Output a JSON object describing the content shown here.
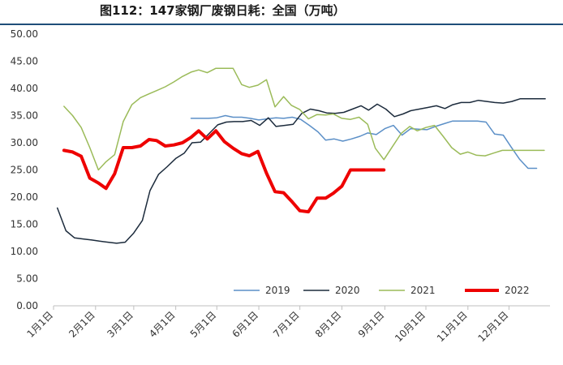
{
  "chart_data": {
    "type": "line",
    "title": "图112：147家钢厂废钢日耗：全国（万吨）",
    "ylim": [
      0,
      50
    ],
    "yticks": [
      "0.00",
      "5.00",
      "10.00",
      "15.00",
      "20.00",
      "25.00",
      "30.00",
      "35.00",
      "40.00",
      "45.00",
      "50.00"
    ],
    "xlim": [
      1,
      53
    ],
    "xticks": [
      {
        "week": 1,
        "label": "1月1日"
      },
      {
        "week": 5.4,
        "label": "2月1日"
      },
      {
        "week": 9.4,
        "label": "3月1日"
      },
      {
        "week": 13.8,
        "label": "4月1日"
      },
      {
        "week": 18.1,
        "label": "5月1日"
      },
      {
        "week": 22.5,
        "label": "6月1日"
      },
      {
        "week": 26.8,
        "label": "7月1日"
      },
      {
        "week": 31.2,
        "label": "8月1日"
      },
      {
        "week": 35.7,
        "label": "9月1日"
      },
      {
        "week": 40,
        "label": "10月1日"
      },
      {
        "week": 44.4,
        "label": "11月1日"
      },
      {
        "week": 48.7,
        "label": "12月1日"
      }
    ],
    "grid": false,
    "legend_position": "bottom-right",
    "series": [
      {
        "name": "2019",
        "color": "#5b8fc7",
        "width": 1.5,
        "x": [
          15.4,
          16.3,
          17.2,
          18.1,
          19,
          19.8,
          20.7,
          21.6,
          22.5,
          23.4,
          24.3,
          25.1,
          26,
          26.9,
          27.8,
          28.7,
          29.5,
          30.4,
          31.3,
          32.2,
          33.1,
          33.9,
          34.8,
          35.7,
          36.6,
          37.5,
          38.4,
          39.2,
          40.1,
          41,
          41.9,
          42.8,
          43.7,
          44.5,
          45.4,
          46.3,
          47.2,
          48.1,
          48.9,
          49.8,
          50.7,
          51.6
        ],
        "values": [
          34.5,
          34.5,
          34.5,
          34.6,
          35,
          34.7,
          34.7,
          34.5,
          34.2,
          34.4,
          34.6,
          34.5,
          34.7,
          34.3,
          33.2,
          32,
          30.5,
          30.7,
          30.3,
          30.7,
          31.2,
          31.8,
          31.5,
          32.6,
          33.2,
          31.4,
          32.6,
          32.5,
          32.4,
          33,
          33.5,
          34,
          34,
          34,
          34,
          33.8,
          31.6,
          31.4,
          29.3,
          27,
          25.3,
          25.3
        ]
      },
      {
        "name": "2020",
        "color": "#1c2b3c",
        "width": 1.5,
        "x": [
          1.4,
          2.3,
          3.2,
          4.1,
          5,
          5.8,
          6.7,
          7.6,
          8.5,
          9.4,
          10.3,
          11.1,
          12,
          12.9,
          13.8,
          14.7,
          15.5,
          16.4,
          17.3,
          18.2,
          19.1,
          19.9,
          20.8,
          21.7,
          22.6,
          23.5,
          24.3,
          25.2,
          26.1,
          27,
          27.9,
          28.8,
          29.6,
          30.5,
          31.4,
          32.3,
          33.2,
          34,
          34.9,
          35.8,
          36.7,
          37.6,
          38.4,
          39.3,
          40.2,
          41.1,
          42,
          42.8,
          43.7,
          44.6,
          45.5,
          46.4,
          47.2,
          48.1,
          49,
          49.9,
          50.8,
          51.6,
          52.5
        ],
        "values": [
          18,
          13.8,
          12.5,
          12.3,
          12.1,
          11.9,
          11.7,
          11.5,
          11.7,
          13.4,
          15.7,
          21.2,
          24.2,
          25.6,
          27.1,
          28.1,
          30,
          30.1,
          31.7,
          33.3,
          33.8,
          33.9,
          33.9,
          34.1,
          33.2,
          34.6,
          33,
          33.2,
          33.4,
          35.4,
          36.2,
          35.9,
          35.5,
          35.4,
          35.6,
          36.2,
          36.8,
          36,
          37.1,
          36.2,
          34.8,
          35.3,
          35.9,
          36.2,
          36.5,
          36.8,
          36.3,
          37,
          37.4,
          37.4,
          37.8,
          37.6,
          37.4,
          37.3,
          37.6,
          38.1,
          38.1,
          38.1,
          38.1
        ]
      },
      {
        "name": "2021",
        "color": "#9bbb59",
        "width": 1.5,
        "x": [
          2.1,
          3,
          3.9,
          4.8,
          5.7,
          6.5,
          7.4,
          8.3,
          9.2,
          10.1,
          11,
          11.8,
          12.7,
          13.6,
          14.5,
          15.4,
          16.2,
          17.1,
          18,
          18.9,
          19.8,
          20.7,
          21.5,
          22.4,
          23.3,
          24.2,
          25.1,
          25.9,
          26.8,
          27.7,
          28.6,
          29.5,
          30.3,
          31.2,
          32.1,
          33,
          33.9,
          34.7,
          35.6,
          36.5,
          37.4,
          38.3,
          39.1,
          40,
          40.9,
          41.8,
          42.7,
          43.6,
          44.4,
          45.3,
          46.2,
          47.1,
          48,
          48.8,
          49.7,
          50.6,
          51.5,
          52.4
        ],
        "values": [
          36.7,
          35,
          32.8,
          29.1,
          25,
          26.5,
          27.8,
          33.9,
          37,
          38.3,
          39,
          39.6,
          40.3,
          41.2,
          42.2,
          43,
          43.4,
          42.9,
          43.7,
          43.7,
          43.7,
          40.7,
          40.2,
          40.6,
          41.6,
          36.6,
          38.5,
          36.9,
          36.1,
          34.4,
          35.2,
          35.1,
          35.3,
          34.5,
          34.3,
          34.7,
          33.4,
          29,
          26.9,
          29.3,
          31.7,
          33,
          32.2,
          32.8,
          33.2,
          31.2,
          29.1,
          27.9,
          28.3,
          27.7,
          27.6,
          28.1,
          28.6,
          28.6,
          28.6,
          28.6,
          28.6,
          28.6
        ]
      },
      {
        "name": "2022",
        "color": "#ee0000",
        "width": 4,
        "x": [
          2.1,
          3,
          3.9,
          4.8,
          5.7,
          6.5,
          7.4,
          8.3,
          9.2,
          10.1,
          11,
          11.8,
          12.7,
          13.6,
          14.5,
          15.4,
          16.2,
          17.1,
          18,
          18.9,
          19.8,
          20.7,
          21.5,
          22.4,
          23.3,
          24.2,
          25.1,
          25.9,
          26.8,
          27.7,
          28.6,
          29.5,
          30.3,
          31.2,
          32.1,
          33,
          33.9,
          34.7,
          35.6
        ],
        "values": [
          28.6,
          28.3,
          27.5,
          23.5,
          22.6,
          21.6,
          24.3,
          29.1,
          29.1,
          29.4,
          30.6,
          30.4,
          29.4,
          29.6,
          30,
          31,
          32.2,
          30.7,
          32.2,
          30.2,
          29,
          28,
          27.6,
          28.4,
          24.4,
          21,
          20.8,
          19.3,
          17.5,
          17.3,
          19.8,
          19.8,
          20.7,
          22,
          25,
          25,
          25,
          25,
          25
        ]
      }
    ]
  }
}
